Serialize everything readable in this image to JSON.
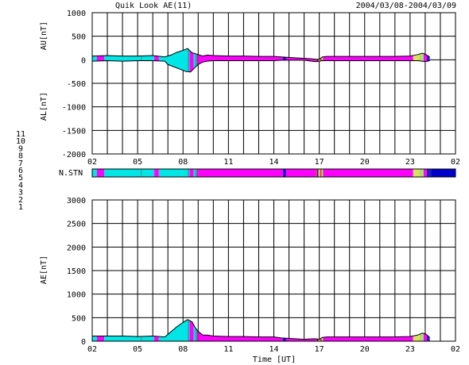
{
  "header": {
    "title": "Quik Look AE(11)",
    "date_range": "2004/03/08-2004/03/09"
  },
  "station_legend": {
    "items": [
      {
        "label": "11",
        "color": "#00e5e5"
      },
      {
        "label": "10",
        "color": "#ff00ff"
      },
      {
        "label": "9",
        "color": "#0000cc"
      },
      {
        "label": "8",
        "color": "#e0e060"
      },
      {
        "label": "7",
        "color": "#a8e070"
      },
      {
        "label": "6",
        "color": "#ee3030"
      },
      {
        "label": "5",
        "color": "#c8c8c8"
      },
      {
        "label": "4",
        "color": "#c8c8c8"
      },
      {
        "label": "3",
        "color": "#20b0b0"
      },
      {
        "label": "2",
        "color": "#c02090"
      },
      {
        "label": "1",
        "color": "#2020c0"
      }
    ]
  },
  "chart_data": [
    {
      "type": "area",
      "ylabel_top": "AU[nT]",
      "ylabel_bottom": "AL[nT]",
      "ylim": [
        -2000,
        1000
      ],
      "y_ticks": [
        "1000",
        "500",
        "0",
        "-500",
        "-1000",
        "-1500",
        "-2000"
      ],
      "y_tick_values": [
        1000,
        500,
        0,
        -500,
        -1000,
        -1500,
        -2000
      ],
      "xlim": [
        2,
        26
      ],
      "x_ticks": [
        "02",
        "05",
        "08",
        "11",
        "14",
        "17",
        "20",
        "23",
        "02"
      ],
      "x_tick_values": [
        2,
        5,
        8,
        11,
        14,
        17,
        20,
        23,
        26
      ],
      "grid": true,
      "series": [
        {
          "key": "au",
          "x": [
            2.0,
            3.0,
            4.0,
            5.0,
            6.0,
            6.8,
            7.2,
            7.6,
            8.0,
            8.3,
            8.6,
            8.8,
            9.0,
            9.3,
            9.6,
            10.0,
            11.0,
            12.0,
            13.0,
            14.0,
            14.5,
            15.0,
            15.5,
            16.0,
            16.5,
            16.8,
            17.0,
            17.2,
            17.5,
            18.0,
            19.0,
            20.0,
            21.0,
            22.0,
            23.0,
            23.5,
            23.8,
            24.0,
            24.3
          ],
          "values": [
            80,
            90,
            80,
            80,
            90,
            60,
            100,
            160,
            200,
            240,
            150,
            130,
            110,
            80,
            100,
            90,
            80,
            80,
            70,
            70,
            60,
            50,
            40,
            30,
            20,
            10,
            10,
            60,
            70,
            70,
            70,
            70,
            70,
            70,
            80,
            110,
            140,
            120,
            60
          ]
        },
        {
          "key": "al",
          "x": [
            2.0,
            3.0,
            4.0,
            5.0,
            6.0,
            6.8,
            7.0,
            7.4,
            7.8,
            8.2,
            8.5,
            8.8,
            9.0,
            9.3,
            9.6,
            10.0,
            11.0,
            12.0,
            13.0,
            14.0,
            14.5,
            15.0,
            15.5,
            16.0,
            16.5,
            16.8,
            17.0,
            17.2,
            17.5,
            18.0,
            19.0,
            20.0,
            21.0,
            22.0,
            23.0,
            23.5,
            23.8,
            24.0,
            24.3
          ],
          "values": [
            -30,
            -20,
            -30,
            -20,
            -20,
            -30,
            -100,
            -150,
            -200,
            -250,
            -260,
            -160,
            -100,
            -50,
            -30,
            -20,
            -20,
            -20,
            -20,
            -20,
            -10,
            -10,
            -10,
            -10,
            -30,
            -40,
            -30,
            -20,
            -20,
            -20,
            -20,
            -20,
            -20,
            -20,
            -20,
            -20,
            -30,
            -40,
            -20
          ]
        }
      ],
      "station_segments": [
        {
          "from": 2.0,
          "to": 2.3,
          "station": 11
        },
        {
          "from": 2.3,
          "to": 2.8,
          "station": 10
        },
        {
          "from": 2.8,
          "to": 5.2,
          "station": 11
        },
        {
          "from": 5.2,
          "to": 5.3,
          "station": 3
        },
        {
          "from": 5.3,
          "to": 6.1,
          "station": 11
        },
        {
          "from": 6.1,
          "to": 6.4,
          "station": 10
        },
        {
          "from": 6.4,
          "to": 8.3,
          "station": 11
        },
        {
          "from": 8.3,
          "to": 8.45,
          "station": 3
        },
        {
          "from": 8.45,
          "to": 8.7,
          "station": 10
        },
        {
          "from": 8.7,
          "to": 8.8,
          "station": 11
        },
        {
          "from": 8.8,
          "to": 8.9,
          "station": 3
        },
        {
          "from": 8.9,
          "to": 9.0,
          "station": 2
        },
        {
          "from": 9.0,
          "to": 14.6,
          "station": 10
        },
        {
          "from": 14.6,
          "to": 14.8,
          "station": 9
        },
        {
          "from": 14.8,
          "to": 16.8,
          "station": 10
        },
        {
          "from": 16.8,
          "to": 16.85,
          "station": 6
        },
        {
          "from": 16.85,
          "to": 16.95,
          "station": 1
        },
        {
          "from": 16.95,
          "to": 17.05,
          "station": 8
        },
        {
          "from": 17.05,
          "to": 17.15,
          "station": 6
        },
        {
          "from": 17.15,
          "to": 17.25,
          "station": 7
        },
        {
          "from": 17.25,
          "to": 23.2,
          "station": 10
        },
        {
          "from": 23.2,
          "to": 23.6,
          "station": 8
        },
        {
          "from": 23.6,
          "to": 23.9,
          "station": 7
        },
        {
          "from": 23.9,
          "to": 24.1,
          "station": 10
        },
        {
          "from": 24.1,
          "to": 24.4,
          "station": 1
        },
        {
          "from": 24.4,
          "to": 26.0,
          "station": 9
        }
      ]
    },
    {
      "type": "area",
      "ylabel": "AE[nT]",
      "xlabel": "Time [UT]",
      "ylim": [
        0,
        3000
      ],
      "y_ticks": [
        "3000",
        "2500",
        "2000",
        "1500",
        "1000",
        "500",
        "0"
      ],
      "y_tick_values": [
        3000,
        2500,
        2000,
        1500,
        1000,
        500,
        0
      ],
      "xlim": [
        2,
        26
      ],
      "x_ticks": [
        "02",
        "05",
        "08",
        "11",
        "14",
        "17",
        "20",
        "23",
        "02"
      ],
      "x_tick_values": [
        2,
        5,
        8,
        11,
        14,
        17,
        20,
        23,
        26
      ],
      "grid": true,
      "series": [
        {
          "key": "ae",
          "x": [
            2.0,
            3.0,
            4.0,
            5.0,
            6.0,
            6.8,
            7.2,
            7.6,
            8.0,
            8.3,
            8.6,
            8.8,
            9.0,
            9.3,
            9.6,
            10.0,
            11.0,
            12.0,
            13.0,
            14.0,
            14.5,
            15.0,
            15.5,
            16.0,
            16.5,
            16.8,
            17.0,
            17.2,
            17.5,
            18.0,
            19.0,
            20.0,
            21.0,
            22.0,
            23.0,
            23.5,
            23.8,
            24.0,
            24.3
          ],
          "values": [
            110,
            110,
            110,
            100,
            110,
            90,
            200,
            310,
            400,
            460,
            410,
            290,
            210,
            130,
            130,
            110,
            100,
            100,
            90,
            90,
            70,
            60,
            50,
            40,
            50,
            50,
            40,
            80,
            90,
            90,
            90,
            90,
            90,
            90,
            100,
            130,
            170,
            160,
            80
          ]
        }
      ]
    }
  ]
}
